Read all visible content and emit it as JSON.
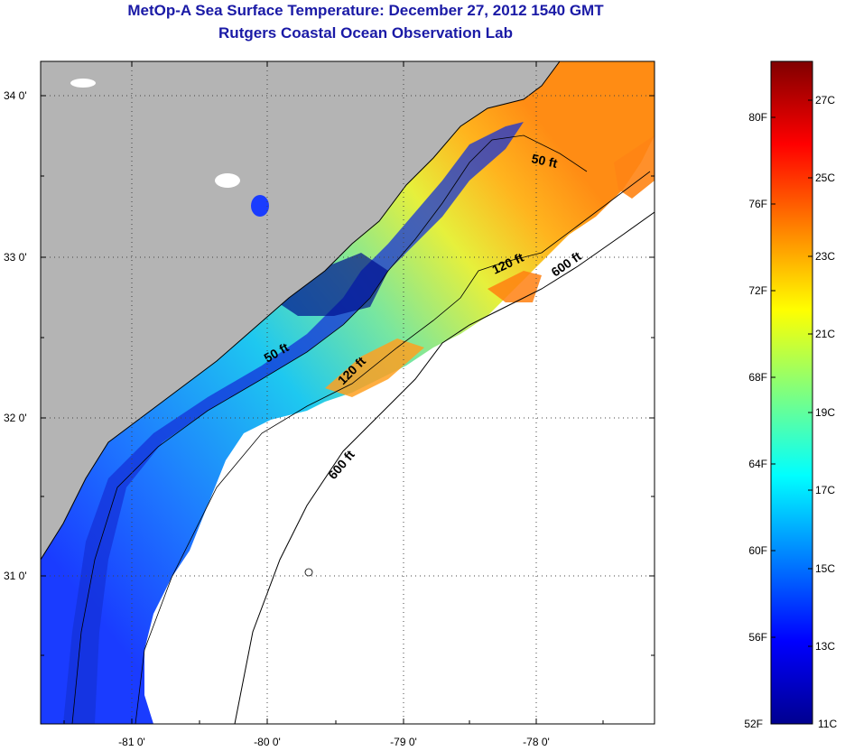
{
  "title": {
    "line1": "MetOp-A Sea Surface Temperature:  December 27, 2012 1540 GMT",
    "line2": "Rutgers Coastal Ocean Observation Lab"
  },
  "map": {
    "lat_labels": [
      "34 0'",
      "33 0'",
      "32 0'",
      "31 0'"
    ],
    "lon_labels": [
      "-81 0'",
      "-80 0'",
      "-79 0'",
      "-78 0'"
    ],
    "contour_labels": {
      "c50_north": "50 ft",
      "c50_south": "50 ft",
      "c120_north": "120 ft",
      "c120_south": "120 ft",
      "c600_north": "600 ft",
      "c600_south": "600 ft"
    },
    "colors": {
      "land": "#b4b4b4",
      "cloud": "#ffffff",
      "coast": "#000000"
    }
  },
  "colorbar": {
    "fahrenheit_labels": [
      "80F",
      "76F",
      "72F",
      "68F",
      "64F",
      "60F",
      "56F",
      "52F"
    ],
    "celsius_labels": [
      "27C",
      "25C",
      "23C",
      "21C",
      "19C",
      "17C",
      "15C",
      "13C",
      "11C"
    ],
    "colormap": "jet"
  }
}
